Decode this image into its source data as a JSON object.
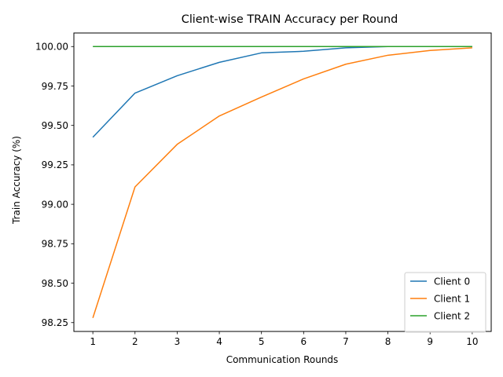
{
  "chart_data": {
    "type": "line",
    "title": "Client-wise TRAIN Accuracy per Round",
    "xlabel": "Communication Rounds",
    "ylabel": "Train Accuracy (%)",
    "x": [
      1,
      2,
      3,
      4,
      5,
      6,
      7,
      8,
      9,
      10
    ],
    "x_ticks": [
      "1",
      "2",
      "3",
      "4",
      "5",
      "6",
      "7",
      "8",
      "9",
      "10"
    ],
    "xlim": [
      0.55,
      10.45
    ],
    "ylim": [
      98.194,
      100.086
    ],
    "y_ticks": [
      98.25,
      98.5,
      98.75,
      99.0,
      99.25,
      99.5,
      99.75,
      100.0
    ],
    "y_tick_labels": [
      "98.25",
      "98.50",
      "98.75",
      "99.00",
      "99.25",
      "99.50",
      "99.75",
      "100.00"
    ],
    "grid": false,
    "legend_position": "bottom-right",
    "series": [
      {
        "name": "Client 0",
        "color": "#1f77b4",
        "values": [
          99.425,
          99.705,
          99.815,
          99.9,
          99.96,
          99.97,
          99.992,
          100.0,
          100.0,
          100.0
        ]
      },
      {
        "name": "Client 1",
        "color": "#ff7f0e",
        "values": [
          98.28,
          99.11,
          99.38,
          99.56,
          99.68,
          99.795,
          99.888,
          99.945,
          99.975,
          99.992
        ]
      },
      {
        "name": "Client 2",
        "color": "#2ca02c",
        "values": [
          100.0,
          100.0,
          100.0,
          100.0,
          100.0,
          100.0,
          100.0,
          100.0,
          100.0,
          100.0
        ]
      }
    ]
  }
}
